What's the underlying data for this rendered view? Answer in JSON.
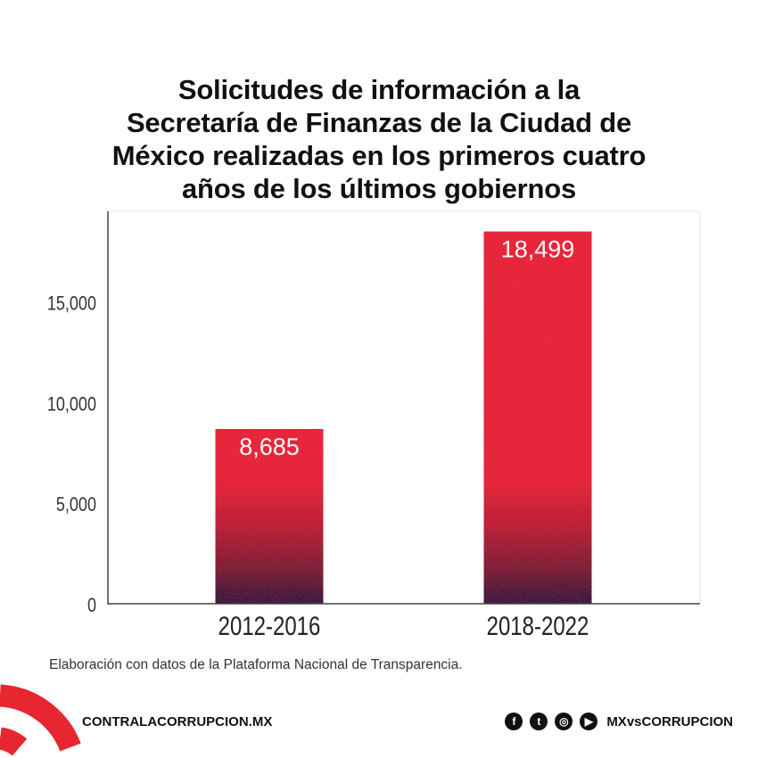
{
  "title_lines": [
    "Solicitudes de información a la",
    "Secretaría de Finanzas de la Ciudad de",
    "México realizadas en los primeros cuatro",
    "años de los últimos gobiernos"
  ],
  "chart_data": {
    "type": "bar",
    "title": "Solicitudes de información a la Secretaría de Finanzas de la Ciudad de México realizadas en los primeros cuatro años de los últimos gobiernos",
    "categories": [
      "2012-2016",
      "2018-2022"
    ],
    "values": [
      8685,
      18499
    ],
    "data_labels": [
      "8,685",
      "18,499"
    ],
    "xlabel": "",
    "ylabel": "",
    "ylim": [
      0,
      19500
    ],
    "yticks": [
      0,
      5000,
      10000,
      15000
    ],
    "ytick_labels": [
      "0",
      "5,000",
      "10,000",
      "15,000"
    ],
    "grid": false,
    "bar_color_top": "#f5222e",
    "bar_color_bottom": "#2e1838"
  },
  "source": "Elaboración con datos de la Plataforma Nacional de Transparencia.",
  "footer": {
    "website": "CONTRALACORRUPCION.MX",
    "handle": "MXvsCORRUPCION",
    "social_icons": [
      "facebook-icon",
      "twitter-icon",
      "instagram-icon",
      "youtube-icon"
    ],
    "brand_color": "#e8262f"
  }
}
